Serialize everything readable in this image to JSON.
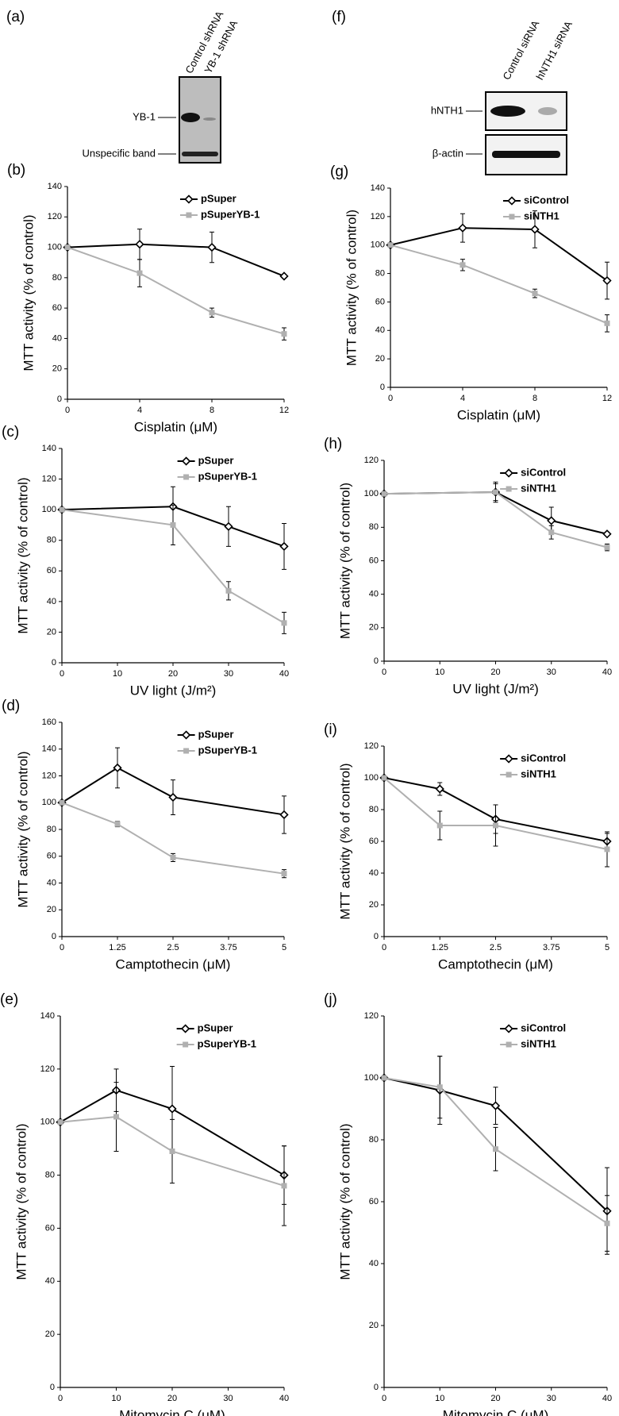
{
  "blots": [
    {
      "panel": "(a)",
      "lanes": [
        "Control shRNA",
        "YB-1 shRNA"
      ],
      "bands": [
        "YB-1",
        "Unspecific band"
      ]
    },
    {
      "panel": "(f)",
      "lanes": [
        "Control siRNA",
        "hNTH1 siRNA"
      ],
      "bands": [
        "hNTH1",
        "β-actin"
      ]
    }
  ],
  "chart_data": [
    {
      "type": "line",
      "panel": "(b)",
      "xlabel": "Cisplatin (μM)",
      "ylabel": "MTT activity (% of control)",
      "x": [
        0,
        4,
        8,
        12
      ],
      "xlim": [
        0,
        12
      ],
      "xticks": [
        0,
        4,
        8,
        12
      ],
      "ylim": [
        0,
        140
      ],
      "yticks": [
        0,
        20,
        40,
        60,
        80,
        100,
        120,
        140
      ],
      "series": [
        {
          "name": "pSuper",
          "color": "#000000",
          "marker": "diamond",
          "values": [
            100,
            102,
            100,
            81
          ],
          "errors": [
            0,
            10,
            10,
            1
          ]
        },
        {
          "name": "pSuperYB-1",
          "color": "#b0b0b0",
          "marker": "square",
          "values": [
            100,
            83,
            57,
            43
          ],
          "errors": [
            0,
            9,
            3,
            4
          ]
        }
      ]
    },
    {
      "type": "line",
      "panel": "(c)",
      "xlabel": "UV light (J/m²)",
      "ylabel": "MTT activity (% of control)",
      "x": [
        0,
        20,
        30,
        40
      ],
      "xlim": [
        0,
        40
      ],
      "xticks": [
        0,
        10,
        20,
        30,
        40
      ],
      "ylim": [
        0,
        140
      ],
      "yticks": [
        0,
        20,
        40,
        60,
        80,
        100,
        120,
        140
      ],
      "series": [
        {
          "name": "pSuper",
          "color": "#000000",
          "marker": "diamond",
          "values": [
            100,
            102,
            89,
            76
          ],
          "errors": [
            0,
            13,
            13,
            15
          ]
        },
        {
          "name": "pSuperYB-1",
          "color": "#b0b0b0",
          "marker": "square",
          "values": [
            100,
            90,
            47,
            26
          ],
          "errors": [
            0,
            13,
            6,
            7
          ]
        }
      ]
    },
    {
      "type": "line",
      "panel": "(d)",
      "xlabel": "Camptothecin (μM)",
      "ylabel": "MTT activity (% of control)",
      "x": [
        0,
        1.25,
        2.5,
        5
      ],
      "xlim": [
        0,
        5
      ],
      "xticks": [
        0,
        1.25,
        2.5,
        3.75,
        5
      ],
      "ylim": [
        0,
        160
      ],
      "yticks": [
        0,
        20,
        40,
        60,
        80,
        100,
        120,
        140,
        160
      ],
      "series": [
        {
          "name": "pSuper",
          "color": "#000000",
          "marker": "diamond",
          "values": [
            100,
            126,
            104,
            91
          ],
          "errors": [
            0,
            15,
            13,
            14
          ]
        },
        {
          "name": "pSuperYB-1",
          "color": "#b0b0b0",
          "marker": "square",
          "values": [
            100,
            84,
            59,
            47
          ],
          "errors": [
            0,
            2,
            3,
            3
          ]
        }
      ]
    },
    {
      "type": "line",
      "panel": "(e)",
      "xlabel": "Mitomycin C (μM)",
      "ylabel": "MTT activity (% of control)",
      "x": [
        0,
        10,
        20,
        40
      ],
      "xlim": [
        0,
        40
      ],
      "xticks": [
        0,
        10,
        20,
        30,
        40
      ],
      "ylim": [
        0,
        140
      ],
      "yticks": [
        0,
        20,
        40,
        60,
        80,
        100,
        120,
        140
      ],
      "series": [
        {
          "name": "pSuper",
          "color": "#000000",
          "marker": "diamond",
          "values": [
            100,
            112,
            105,
            80
          ],
          "errors": [
            0,
            8,
            16,
            11
          ]
        },
        {
          "name": "pSuperYB-1",
          "color": "#b0b0b0",
          "marker": "square",
          "values": [
            100,
            102,
            89,
            76
          ],
          "errors": [
            0,
            13,
            12,
            15
          ]
        }
      ]
    },
    {
      "type": "line",
      "panel": "(g)",
      "xlabel": "Cisplatin (μM)",
      "ylabel": "MTT activity (% of control)",
      "x": [
        0,
        4,
        8,
        12
      ],
      "xlim": [
        0,
        12
      ],
      "xticks": [
        0,
        4,
        8,
        12
      ],
      "ylim": [
        0,
        140
      ],
      "yticks": [
        0,
        20,
        40,
        60,
        80,
        100,
        120,
        140
      ],
      "series": [
        {
          "name": "siControl",
          "color": "#000000",
          "marker": "diamond",
          "values": [
            100,
            112,
            111,
            75
          ],
          "errors": [
            0,
            10,
            13,
            13
          ]
        },
        {
          "name": "siNTH1",
          "color": "#b0b0b0",
          "marker": "square",
          "values": [
            100,
            86,
            66,
            45
          ],
          "errors": [
            0,
            4,
            3,
            6
          ]
        }
      ]
    },
    {
      "type": "line",
      "panel": "(h)",
      "xlabel": "UV light (J/m²)",
      "ylabel": "MTT activity (% of control)",
      "x": [
        0,
        20,
        30,
        40
      ],
      "xlim": [
        0,
        40
      ],
      "xticks": [
        0,
        10,
        20,
        30,
        40
      ],
      "ylim": [
        0,
        120
      ],
      "yticks": [
        0,
        20,
        40,
        60,
        80,
        100,
        120
      ],
      "series": [
        {
          "name": "siControl",
          "color": "#000000",
          "marker": "diamond",
          "values": [
            100,
            101,
            84,
            76
          ],
          "errors": [
            0,
            5,
            8,
            1
          ]
        },
        {
          "name": "siNTH1",
          "color": "#b0b0b0",
          "marker": "square",
          "values": [
            100,
            101,
            77,
            68
          ],
          "errors": [
            0,
            6,
            4,
            2
          ]
        }
      ]
    },
    {
      "type": "line",
      "panel": "(i)",
      "xlabel": "Camptothecin (μM)",
      "ylabel": "MTT activity (% of control)",
      "x": [
        0,
        1.25,
        2.5,
        5
      ],
      "xlim": [
        0,
        5
      ],
      "xticks": [
        0,
        1.25,
        2.5,
        3.75,
        5
      ],
      "ylim": [
        0,
        120
      ],
      "yticks": [
        0,
        20,
        40,
        60,
        80,
        100,
        120
      ],
      "series": [
        {
          "name": "siControl",
          "color": "#000000",
          "marker": "diamond",
          "values": [
            100,
            93,
            74,
            60
          ],
          "errors": [
            0,
            4,
            9,
            5
          ]
        },
        {
          "name": "siNTH1",
          "color": "#b0b0b0",
          "marker": "square",
          "values": [
            100,
            70,
            70,
            55
          ],
          "errors": [
            0,
            9,
            13,
            11
          ]
        }
      ]
    },
    {
      "type": "line",
      "panel": "(j)",
      "xlabel": "Mitomycin C (μM)",
      "ylabel": "MTT activity (% of control)",
      "x": [
        0,
        10,
        20,
        40
      ],
      "xlim": [
        0,
        40
      ],
      "xticks": [
        0,
        10,
        20,
        30,
        40
      ],
      "ylim": [
        0,
        120
      ],
      "yticks": [
        0,
        20,
        40,
        60,
        80,
        100,
        120
      ],
      "series": [
        {
          "name": "siControl",
          "color": "#000000",
          "marker": "diamond",
          "values": [
            100,
            96,
            91,
            57
          ],
          "errors": [
            0,
            11,
            6,
            14
          ]
        },
        {
          "name": "siNTH1",
          "color": "#b0b0b0",
          "marker": "square",
          "values": [
            100,
            97,
            77,
            53
          ],
          "errors": [
            0,
            10,
            7,
            9
          ]
        }
      ]
    }
  ]
}
